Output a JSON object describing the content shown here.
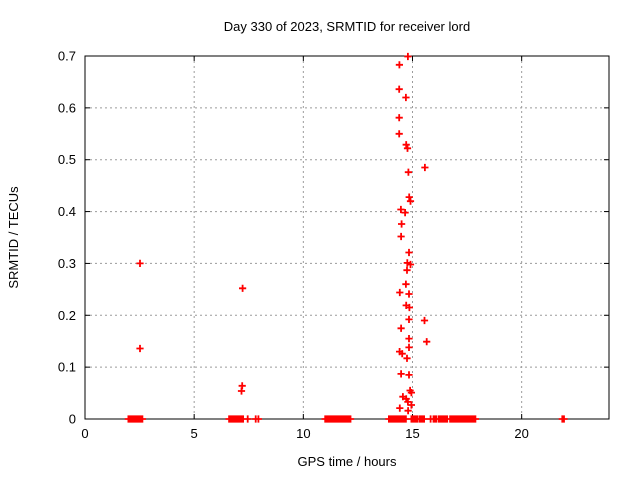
{
  "window": {
    "background_color": "#ffffff"
  },
  "chart_data": {
    "type": "scatter",
    "title": "Day 330 of 2023, SRMTID for receiver lord",
    "xlabel": "GPS time / hours",
    "ylabel": "SRMTID / TECUs",
    "xlim": [
      0,
      24
    ],
    "ylim": [
      0,
      0.7
    ],
    "xticks": [
      {
        "value": 0,
        "label": "0"
      },
      {
        "value": 5,
        "label": "5"
      },
      {
        "value": 10,
        "label": "10"
      },
      {
        "value": 15,
        "label": "15"
      },
      {
        "value": 20,
        "label": "20"
      }
    ],
    "yticks": [
      {
        "value": 0.0,
        "label": "0"
      },
      {
        "value": 0.1,
        "label": "0.1"
      },
      {
        "value": 0.2,
        "label": "0.2"
      },
      {
        "value": 0.3,
        "label": "0.3"
      },
      {
        "value": 0.4,
        "label": "0.4"
      },
      {
        "value": 0.5,
        "label": "0.5"
      },
      {
        "value": 0.6,
        "label": "0.6"
      },
      {
        "value": 0.7,
        "label": "0.7"
      }
    ],
    "grid": true,
    "legend": "none",
    "marker": "plus",
    "marker_color": "#ff0000",
    "border_color": "#000000",
    "grid_color": "#9b9b9b",
    "points": [
      [
        2.52,
        0.3
      ],
      [
        2.52,
        0.136
      ],
      [
        7.22,
        0.252
      ],
      [
        7.2,
        0.064
      ],
      [
        7.17,
        0.054
      ],
      [
        14.79,
        0.699
      ],
      [
        14.4,
        0.683
      ],
      [
        14.39,
        0.636
      ],
      [
        14.7,
        0.62
      ],
      [
        14.39,
        0.581
      ],
      [
        14.39,
        0.55
      ],
      [
        14.71,
        0.529
      ],
      [
        14.77,
        0.522
      ],
      [
        15.57,
        0.485
      ],
      [
        14.81,
        0.476
      ],
      [
        14.85,
        0.428
      ],
      [
        14.91,
        0.42
      ],
      [
        14.47,
        0.404
      ],
      [
        14.66,
        0.398
      ],
      [
        14.5,
        0.376
      ],
      [
        14.48,
        0.352
      ],
      [
        14.84,
        0.321
      ],
      [
        14.76,
        0.301
      ],
      [
        14.91,
        0.298
      ],
      [
        14.75,
        0.287
      ],
      [
        14.7,
        0.26
      ],
      [
        14.42,
        0.244
      ],
      [
        14.84,
        0.241
      ],
      [
        14.71,
        0.219
      ],
      [
        14.86,
        0.215
      ],
      [
        14.84,
        0.192
      ],
      [
        15.55,
        0.19
      ],
      [
        14.48,
        0.175
      ],
      [
        14.84,
        0.155
      ],
      [
        15.65,
        0.149
      ],
      [
        14.84,
        0.138
      ],
      [
        14.41,
        0.13
      ],
      [
        14.53,
        0.126
      ],
      [
        14.75,
        0.117
      ],
      [
        14.48,
        0.087
      ],
      [
        14.84,
        0.085
      ],
      [
        14.89,
        0.055
      ],
      [
        14.95,
        0.051
      ],
      [
        14.56,
        0.043
      ],
      [
        14.71,
        0.039
      ],
      [
        14.79,
        0.033
      ],
      [
        14.95,
        0.027
      ],
      [
        14.42,
        0.021
      ],
      [
        14.8,
        0.016
      ]
    ],
    "zero_value_runs": [
      [
        1.99,
        2.65
      ],
      [
        6.6,
        7.26
      ],
      [
        11.0,
        12.16
      ],
      [
        13.92,
        14.53
      ],
      [
        14.58,
        14.73
      ],
      [
        14.95,
        15.25
      ],
      [
        15.33,
        15.56
      ],
      [
        15.96,
        16.11
      ],
      [
        16.19,
        16.6
      ],
      [
        16.72,
        17.9
      ],
      [
        21.86,
        21.95
      ]
    ],
    "zero_value_singles": [
      7.45,
      7.82,
      7.94,
      15.83
    ]
  }
}
